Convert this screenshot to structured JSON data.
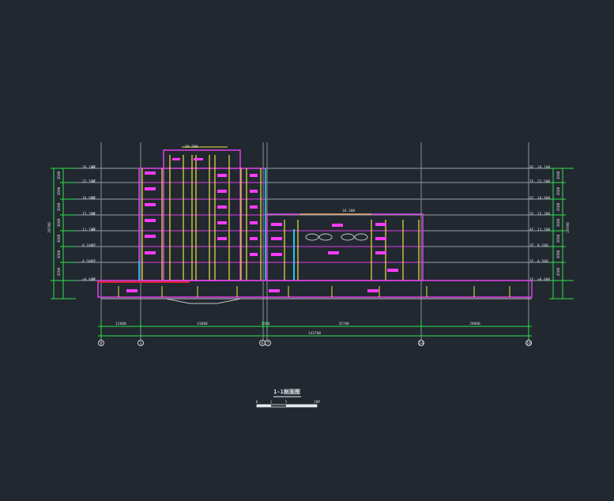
{
  "drawing": {
    "title": "1-1剖面图",
    "colors": {
      "background": "#212830",
      "level_line": "#9aa0a8",
      "grid_line": "#8c9096",
      "dim_line": "#2ee24a",
      "wall": "#e040e8",
      "frame": "#f0e040",
      "room_label": "#ff3cff",
      "glazing": "#26c6f0",
      "slab_cut": "#e02030",
      "text": "#d8dade"
    },
    "level_tags_left": [
      {
        "floor": "8F",
        "elev": "26.100"
      },
      {
        "floor": "7F",
        "elev": "22.500"
      },
      {
        "floor": "6F",
        "elev": "18.900"
      },
      {
        "floor": "5F",
        "elev": "15.300"
      },
      {
        "floor": "4F",
        "elev": "11.700"
      },
      {
        "floor": "3F",
        "elev": "8.100"
      },
      {
        "floor": "2F",
        "elev": "4.500"
      },
      {
        "floor": "1F",
        "elev": "±0.000"
      }
    ],
    "level_tags_right": [
      {
        "floor": "8F",
        "elev": "26.100"
      },
      {
        "floor": "7F",
        "elev": "22.500"
      },
      {
        "floor": "6F",
        "elev": "18.900"
      },
      {
        "floor": "5F",
        "elev": "15.300"
      },
      {
        "floor": "4F",
        "elev": "11.700"
      },
      {
        "floor": "3F",
        "elev": "8.100"
      },
      {
        "floor": "2F",
        "elev": "4.500"
      },
      {
        "floor": "1F",
        "elev": "±0.000"
      }
    ],
    "vertical_dims_left": [
      "3600",
      "3600",
      "3600",
      "3600",
      "3600",
      "3600",
      "4500"
    ],
    "vertical_dims_right": [
      "3600",
      "3600",
      "3600",
      "3600",
      "3600",
      "3600",
      "4500"
    ],
    "total_height_left": "29700",
    "total_height_right": "29700",
    "roof_elev_left": "29.700",
    "roof_elev_mid": "18.300",
    "horizontal_dims": [
      "12000",
      "41000",
      "1200",
      "35700",
      "29000"
    ],
    "overall_dim": "143700",
    "axis_labels": [
      "B",
      "1",
      "6",
      "7",
      "14",
      "18"
    ],
    "scale_bar_labels": [
      "0",
      "1",
      "5",
      "10M"
    ]
  }
}
